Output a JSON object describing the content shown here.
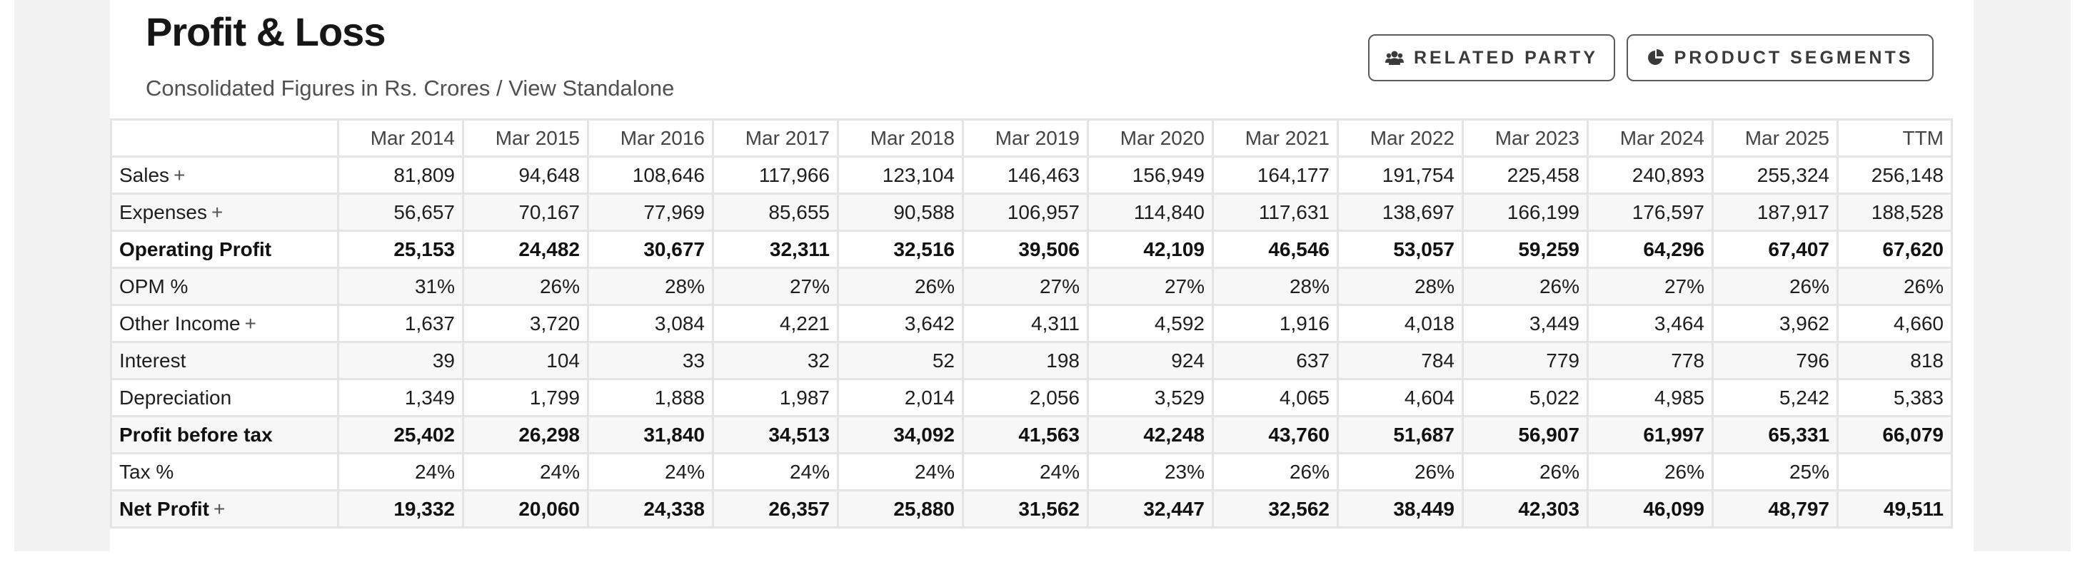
{
  "header": {
    "title": "Profit & Loss",
    "subtitle": "Consolidated Figures in Rs. Crores / View Standalone",
    "buttons": [
      {
        "label": "RELATED PARTY",
        "icon": "users-icon"
      },
      {
        "label": "PRODUCT SEGMENTS",
        "icon": "pie-chart-icon"
      }
    ]
  },
  "table": {
    "columns": [
      "",
      "Mar 2014",
      "Mar 2015",
      "Mar 2016",
      "Mar 2017",
      "Mar 2018",
      "Mar 2019",
      "Mar 2020",
      "Mar 2021",
      "Mar 2022",
      "Mar 2023",
      "Mar 2024",
      "Mar 2025",
      "TTM"
    ],
    "rows": [
      {
        "label": "Sales",
        "expand": "+",
        "bold": false,
        "values": [
          "81,809",
          "94,648",
          "108,646",
          "117,966",
          "123,104",
          "146,463",
          "156,949",
          "164,177",
          "191,754",
          "225,458",
          "240,893",
          "255,324",
          "256,148"
        ]
      },
      {
        "label": "Expenses",
        "expand": "+",
        "bold": false,
        "values": [
          "56,657",
          "70,167",
          "77,969",
          "85,655",
          "90,588",
          "106,957",
          "114,840",
          "117,631",
          "138,697",
          "166,199",
          "176,597",
          "187,917",
          "188,528"
        ]
      },
      {
        "label": "Operating Profit",
        "expand": "",
        "bold": true,
        "values": [
          "25,153",
          "24,482",
          "30,677",
          "32,311",
          "32,516",
          "39,506",
          "42,109",
          "46,546",
          "53,057",
          "59,259",
          "64,296",
          "67,407",
          "67,620"
        ]
      },
      {
        "label": "OPM %",
        "expand": "",
        "bold": false,
        "values": [
          "31%",
          "26%",
          "28%",
          "27%",
          "26%",
          "27%",
          "27%",
          "28%",
          "28%",
          "26%",
          "27%",
          "26%",
          "26%"
        ]
      },
      {
        "label": "Other Income",
        "expand": "+",
        "bold": false,
        "values": [
          "1,637",
          "3,720",
          "3,084",
          "4,221",
          "3,642",
          "4,311",
          "4,592",
          "1,916",
          "4,018",
          "3,449",
          "3,464",
          "3,962",
          "4,660"
        ]
      },
      {
        "label": "Interest",
        "expand": "",
        "bold": false,
        "values": [
          "39",
          "104",
          "33",
          "32",
          "52",
          "198",
          "924",
          "637",
          "784",
          "779",
          "778",
          "796",
          "818"
        ]
      },
      {
        "label": "Depreciation",
        "expand": "",
        "bold": false,
        "values": [
          "1,349",
          "1,799",
          "1,888",
          "1,987",
          "2,014",
          "2,056",
          "3,529",
          "4,065",
          "4,604",
          "5,022",
          "4,985",
          "5,242",
          "5,383"
        ]
      },
      {
        "label": "Profit before tax",
        "expand": "",
        "bold": true,
        "values": [
          "25,402",
          "26,298",
          "31,840",
          "34,513",
          "34,092",
          "41,563",
          "42,248",
          "43,760",
          "51,687",
          "56,907",
          "61,997",
          "65,331",
          "66,079"
        ]
      },
      {
        "label": "Tax %",
        "expand": "",
        "bold": false,
        "values": [
          "24%",
          "24%",
          "24%",
          "24%",
          "24%",
          "24%",
          "23%",
          "26%",
          "26%",
          "26%",
          "26%",
          "25%",
          ""
        ]
      },
      {
        "label": "Net Profit",
        "expand": "+",
        "bold": true,
        "values": [
          "19,332",
          "20,060",
          "24,338",
          "26,357",
          "25,880",
          "31,562",
          "32,447",
          "32,562",
          "38,449",
          "42,303",
          "46,099",
          "48,797",
          "49,511"
        ]
      }
    ]
  }
}
